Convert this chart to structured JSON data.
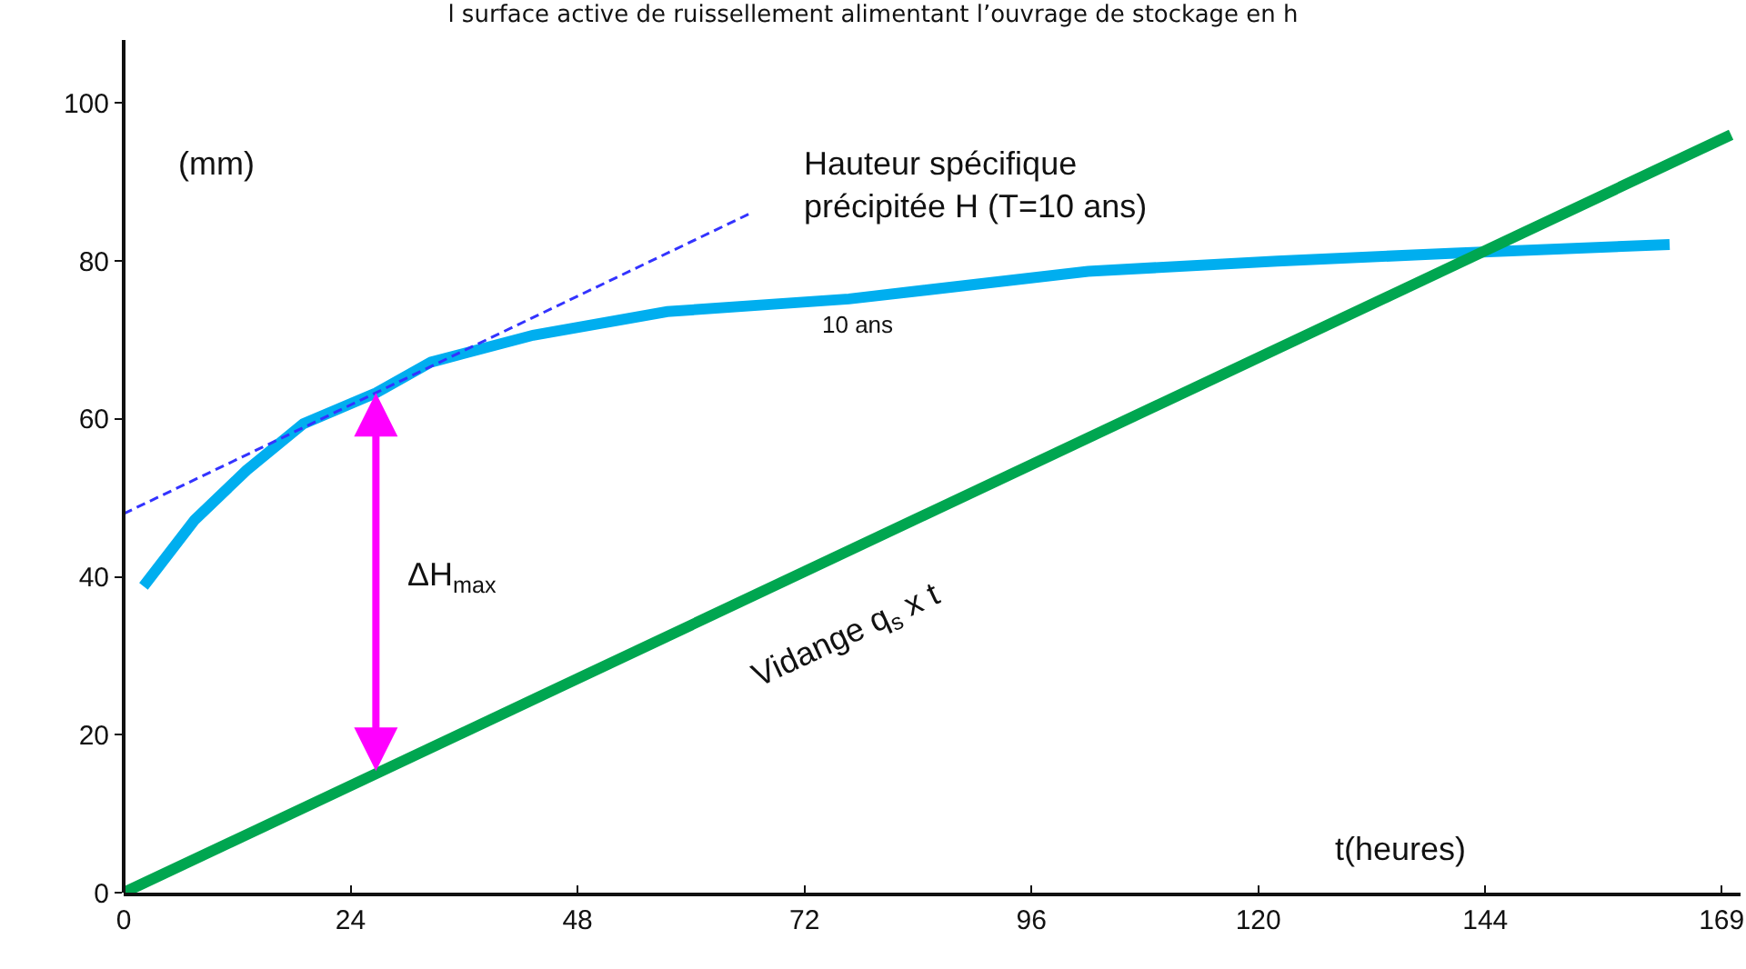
{
  "chart_data": {
    "type": "line",
    "title": "l surface active de ruissellement alimentant l’ouvrage de stockage en h",
    "xlabel": "t(heures)",
    "ylabel": "(mm)",
    "xlim": [
      0,
      171
    ],
    "ylim": [
      0,
      108
    ],
    "xticks": [
      0,
      24,
      48,
      72,
      96,
      120,
      144,
      169
    ],
    "yticks": [
      0,
      20,
      40,
      60,
      80,
      100
    ],
    "grid": false,
    "marker": "none",
    "series": [
      {
        "color": "#00aeef",
        "x": [
          2.1,
          7.5,
          13,
          19,
          26.7,
          32.5,
          43.3,
          57.5,
          76.7,
          102,
          122,
          140.8,
          163.5
        ],
        "values": [
          38.8,
          47.2,
          53.5,
          59.4,
          63.3,
          67.2,
          70.6,
          73.6,
          75.2,
          78.7,
          80,
          81,
          82.1
        ]
      },
      {
        "color": "#3333ff",
        "line_style": "dashed",
        "x": [
          0,
          66.2
        ],
        "values": [
          48,
          86
        ]
      },
      {
        "color": "#00a650",
        "x": [
          0,
          170
        ],
        "values": [
          0,
          96
        ]
      }
    ],
    "annotations": [
      "Hauteur spécifique\nprécipitée H (T=10 ans)",
      "10 ans",
      "ΔH$_{max}$",
      "Vidange q$_{s}$ x t"
    ]
  }
}
